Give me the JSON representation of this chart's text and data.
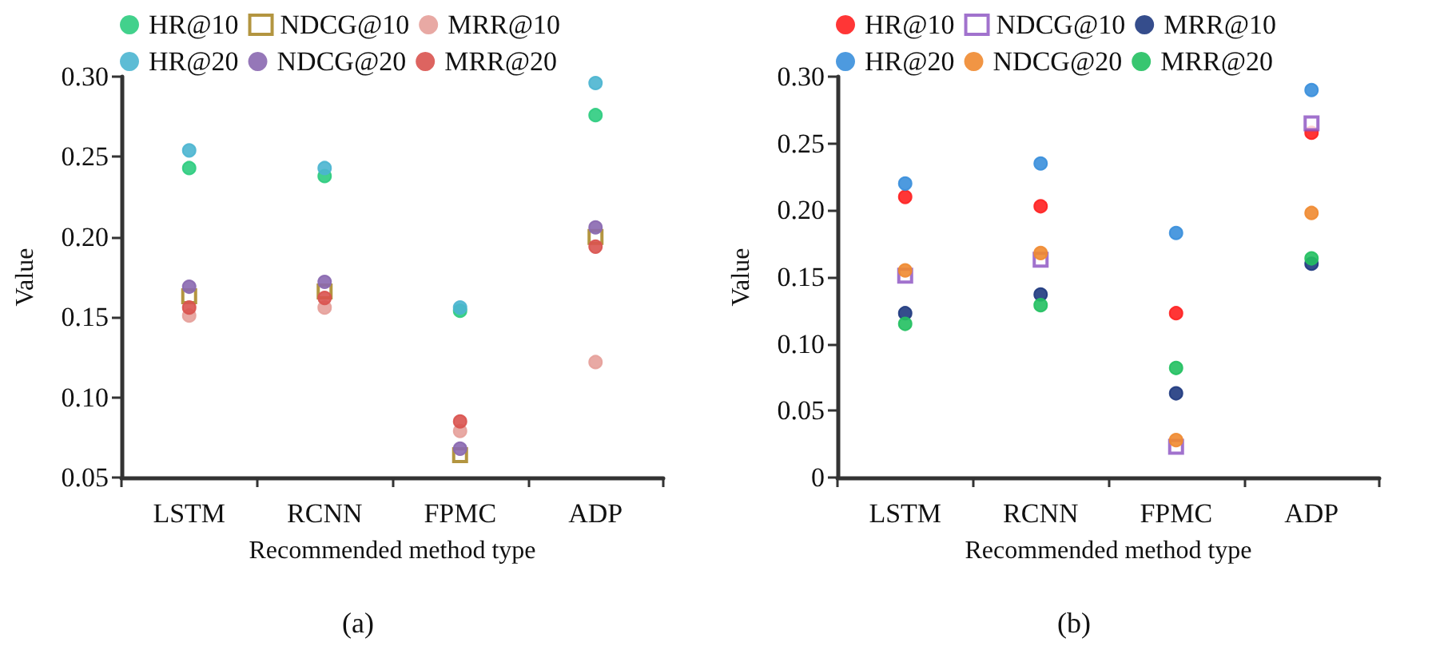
{
  "chart_data": [
    {
      "type": "scatter",
      "xlabel": "Recommended method type",
      "ylabel": "Value",
      "categories": [
        "LSTM",
        "RCNN",
        "FPMC",
        "ADP"
      ],
      "ylim": [
        0.05,
        0.3
      ],
      "yticks": [
        {
          "value": 0.05,
          "label": "0.05"
        },
        {
          "value": 0.1,
          "label": "0.10"
        },
        {
          "value": 0.15,
          "label": "0.15"
        },
        {
          "value": 0.2,
          "label": "0.20"
        },
        {
          "value": 0.25,
          "label": "0.25"
        },
        {
          "value": 0.3,
          "label": "0.30"
        }
      ],
      "grid": false,
      "legend": "top",
      "marker": "circle",
      "annotations": [
        "(a)"
      ],
      "series": [
        {
          "name": "HR@10",
          "color": "#2ecc80",
          "values": [
            0.243,
            0.238,
            0.154,
            0.276
          ]
        },
        {
          "name": "NDCG@10",
          "color": "#a07a10",
          "marker": "square",
          "values": [
            0.163,
            0.166,
            0.064,
            0.2
          ]
        },
        {
          "name": "MRR@10",
          "color": "#e6a09a",
          "values": [
            0.151,
            0.156,
            0.079,
            0.122
          ]
        },
        {
          "name": "HR@20",
          "color": "#4bb5d0",
          "values": [
            0.254,
            0.243,
            0.156,
            0.296
          ]
        },
        {
          "name": "NDCG@20",
          "color": "#8a68b0",
          "values": [
            0.169,
            0.172,
            0.068,
            0.206
          ]
        },
        {
          "name": "MRR@20",
          "color": "#d9534f",
          "values": [
            0.156,
            0.162,
            0.085,
            0.194
          ]
        }
      ]
    },
    {
      "type": "scatter",
      "xlabel": "Recommended method type",
      "ylabel": "Value",
      "categories": [
        "LSTM",
        "RCNN",
        "FPMC",
        "ADP"
      ],
      "ylim": [
        0,
        0.3
      ],
      "yticks": [
        0,
        {
          "value": 0.05,
          "label": "0.05"
        },
        {
          "value": 0.1,
          "label": "0.10"
        },
        {
          "value": 0.15,
          "label": "0.15"
        },
        {
          "value": 0.2,
          "label": "0.20"
        },
        {
          "value": 0.25,
          "label": "0.25"
        },
        {
          "value": 0.3,
          "label": "0.30"
        }
      ],
      "grid": false,
      "legend": "top",
      "marker": "circle",
      "annotations": [
        "(b)"
      ],
      "series": [
        {
          "name": "HR@10",
          "color": "#ff2020",
          "values": [
            0.21,
            0.203,
            0.123,
            0.258
          ]
        },
        {
          "name": "NDCG@10",
          "color": "#8a4fc0",
          "marker": "square",
          "values": [
            0.151,
            0.163,
            0.023,
            0.265
          ]
        },
        {
          "name": "MRR@10",
          "color": "#1f3a80",
          "values": [
            0.123,
            0.137,
            0.063,
            0.16
          ]
        },
        {
          "name": "HR@20",
          "color": "#3a8fdc",
          "values": [
            0.22,
            0.235,
            0.183,
            0.29
          ]
        },
        {
          "name": "NDCG@20",
          "color": "#f08a30",
          "values": [
            0.155,
            0.168,
            0.028,
            0.198
          ]
        },
        {
          "name": "MRR@20",
          "color": "#22c060",
          "values": [
            0.115,
            0.129,
            0.082,
            0.164
          ]
        }
      ]
    }
  ]
}
